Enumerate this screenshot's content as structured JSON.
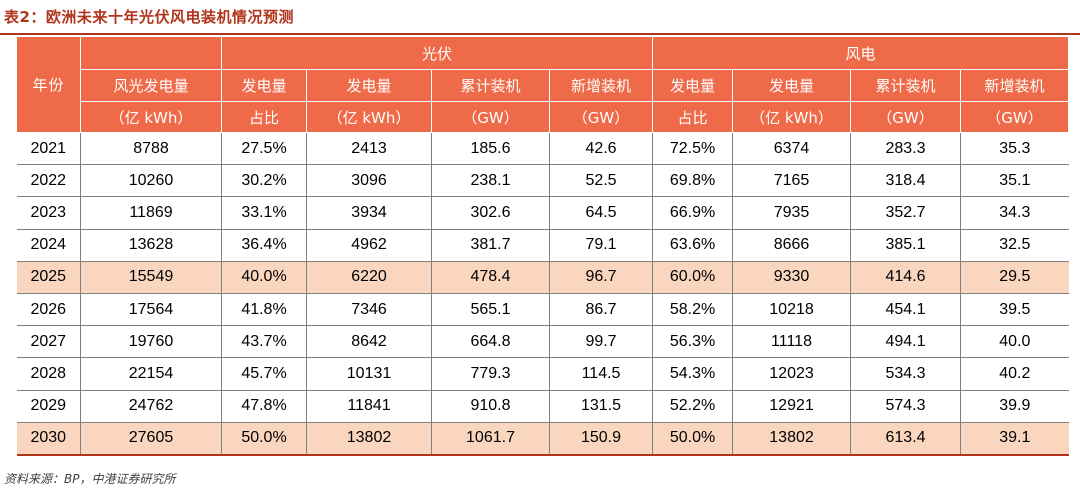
{
  "title": "表2：欧洲未来十年光伏风电装机情况预测",
  "header": {
    "year": "年份",
    "total_line1": "风光发电量",
    "total_line2": "（亿 kWh）",
    "group_pv": "光伏",
    "group_wind": "风电",
    "share_line1": "发电量",
    "share_line2": "占比",
    "gen_line1": "发电量",
    "gen_line2": "（亿 kWh）",
    "cum_line1": "累计装机",
    "cum_line2": "（GW）",
    "new_line1": "新增装机",
    "new_line2": "（GW）"
  },
  "rows": [
    {
      "year": "2021",
      "total": "8788",
      "pv_share": "27.5%",
      "pv_gen": "2413",
      "pv_cum": "185.6",
      "pv_new": "42.6",
      "wind_share": "72.5%",
      "wind_gen": "6374",
      "wind_cum": "283.3",
      "wind_new": "35.3"
    },
    {
      "year": "2022",
      "total": "10260",
      "pv_share": "30.2%",
      "pv_gen": "3096",
      "pv_cum": "238.1",
      "pv_new": "52.5",
      "wind_share": "69.8%",
      "wind_gen": "7165",
      "wind_cum": "318.4",
      "wind_new": "35.1"
    },
    {
      "year": "2023",
      "total": "11869",
      "pv_share": "33.1%",
      "pv_gen": "3934",
      "pv_cum": "302.6",
      "pv_new": "64.5",
      "wind_share": "66.9%",
      "wind_gen": "7935",
      "wind_cum": "352.7",
      "wind_new": "34.3"
    },
    {
      "year": "2024",
      "total": "13628",
      "pv_share": "36.4%",
      "pv_gen": "4962",
      "pv_cum": "381.7",
      "pv_new": "79.1",
      "wind_share": "63.6%",
      "wind_gen": "8666",
      "wind_cum": "385.1",
      "wind_new": "32.5"
    },
    {
      "year": "2025",
      "total": "15549",
      "pv_share": "40.0%",
      "pv_gen": "6220",
      "pv_cum": "478.4",
      "pv_new": "96.7",
      "wind_share": "60.0%",
      "wind_gen": "9330",
      "wind_cum": "414.6",
      "wind_new": "29.5"
    },
    {
      "year": "2026",
      "total": "17564",
      "pv_share": "41.8%",
      "pv_gen": "7346",
      "pv_cum": "565.1",
      "pv_new": "86.7",
      "wind_share": "58.2%",
      "wind_gen": "10218",
      "wind_cum": "454.1",
      "wind_new": "39.5"
    },
    {
      "year": "2027",
      "total": "19760",
      "pv_share": "43.7%",
      "pv_gen": "8642",
      "pv_cum": "664.8",
      "pv_new": "99.7",
      "wind_share": "56.3%",
      "wind_gen": "11118",
      "wind_cum": "494.1",
      "wind_new": "40.0"
    },
    {
      "year": "2028",
      "total": "22154",
      "pv_share": "45.7%",
      "pv_gen": "10131",
      "pv_cum": "779.3",
      "pv_new": "114.5",
      "wind_share": "54.3%",
      "wind_gen": "12023",
      "wind_cum": "534.3",
      "wind_new": "40.2"
    },
    {
      "year": "2029",
      "total": "24762",
      "pv_share": "47.8%",
      "pv_gen": "11841",
      "pv_cum": "910.8",
      "pv_new": "131.5",
      "wind_share": "52.2%",
      "wind_gen": "12921",
      "wind_cum": "574.3",
      "wind_new": "39.9"
    },
    {
      "year": "2030",
      "total": "27605",
      "pv_share": "50.0%",
      "pv_gen": "13802",
      "pv_cum": "1061.7",
      "pv_new": "150.9",
      "wind_share": "50.0%",
      "wind_gen": "13802",
      "wind_cum": "613.4",
      "wind_new": "39.1"
    }
  ],
  "highlight_years": [
    "2025",
    "2030"
  ],
  "source": "资料来源：BP，中港证券研究所",
  "colors": {
    "title": "#b0351d",
    "header_bg": "#ef6a48",
    "header_text": "#ffffff",
    "highlight_row": "#fbd6bf",
    "grid": "#7f7f7f"
  }
}
